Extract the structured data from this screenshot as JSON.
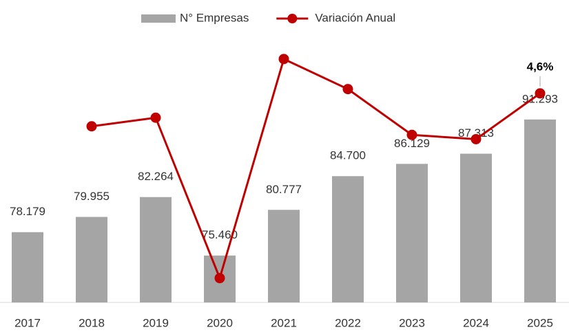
{
  "chart_data": {
    "type": "bar",
    "categories": [
      "2017",
      "2018",
      "2019",
      "2020",
      "2021",
      "2022",
      "2023",
      "2024",
      "2025"
    ],
    "series": [
      {
        "name": "N° Empresas",
        "type": "bar",
        "color": "#a5a5a5",
        "values": [
          78179,
          79955,
          82264,
          75460,
          80777,
          84700,
          86129,
          87313,
          91293
        ],
        "value_labels": [
          "78.179",
          "79.955",
          "82.264",
          "75.460",
          "80.777",
          "84.700",
          "86.129",
          "87.313",
          "91.293"
        ]
      },
      {
        "name": "Variación Anual",
        "type": "line",
        "axis": "y2",
        "color": "#c00000",
        "values": [
          null,
          2.3,
          2.9,
          -8.3,
          7.0,
          4.9,
          1.7,
          1.4,
          4.6
        ],
        "value_labels": [
          null,
          null,
          null,
          null,
          null,
          null,
          null,
          null,
          "4,6%"
        ]
      }
    ],
    "ylim": [
      70000,
      100000
    ],
    "y2lim": [
      -10,
      8
    ],
    "legend": "top"
  }
}
